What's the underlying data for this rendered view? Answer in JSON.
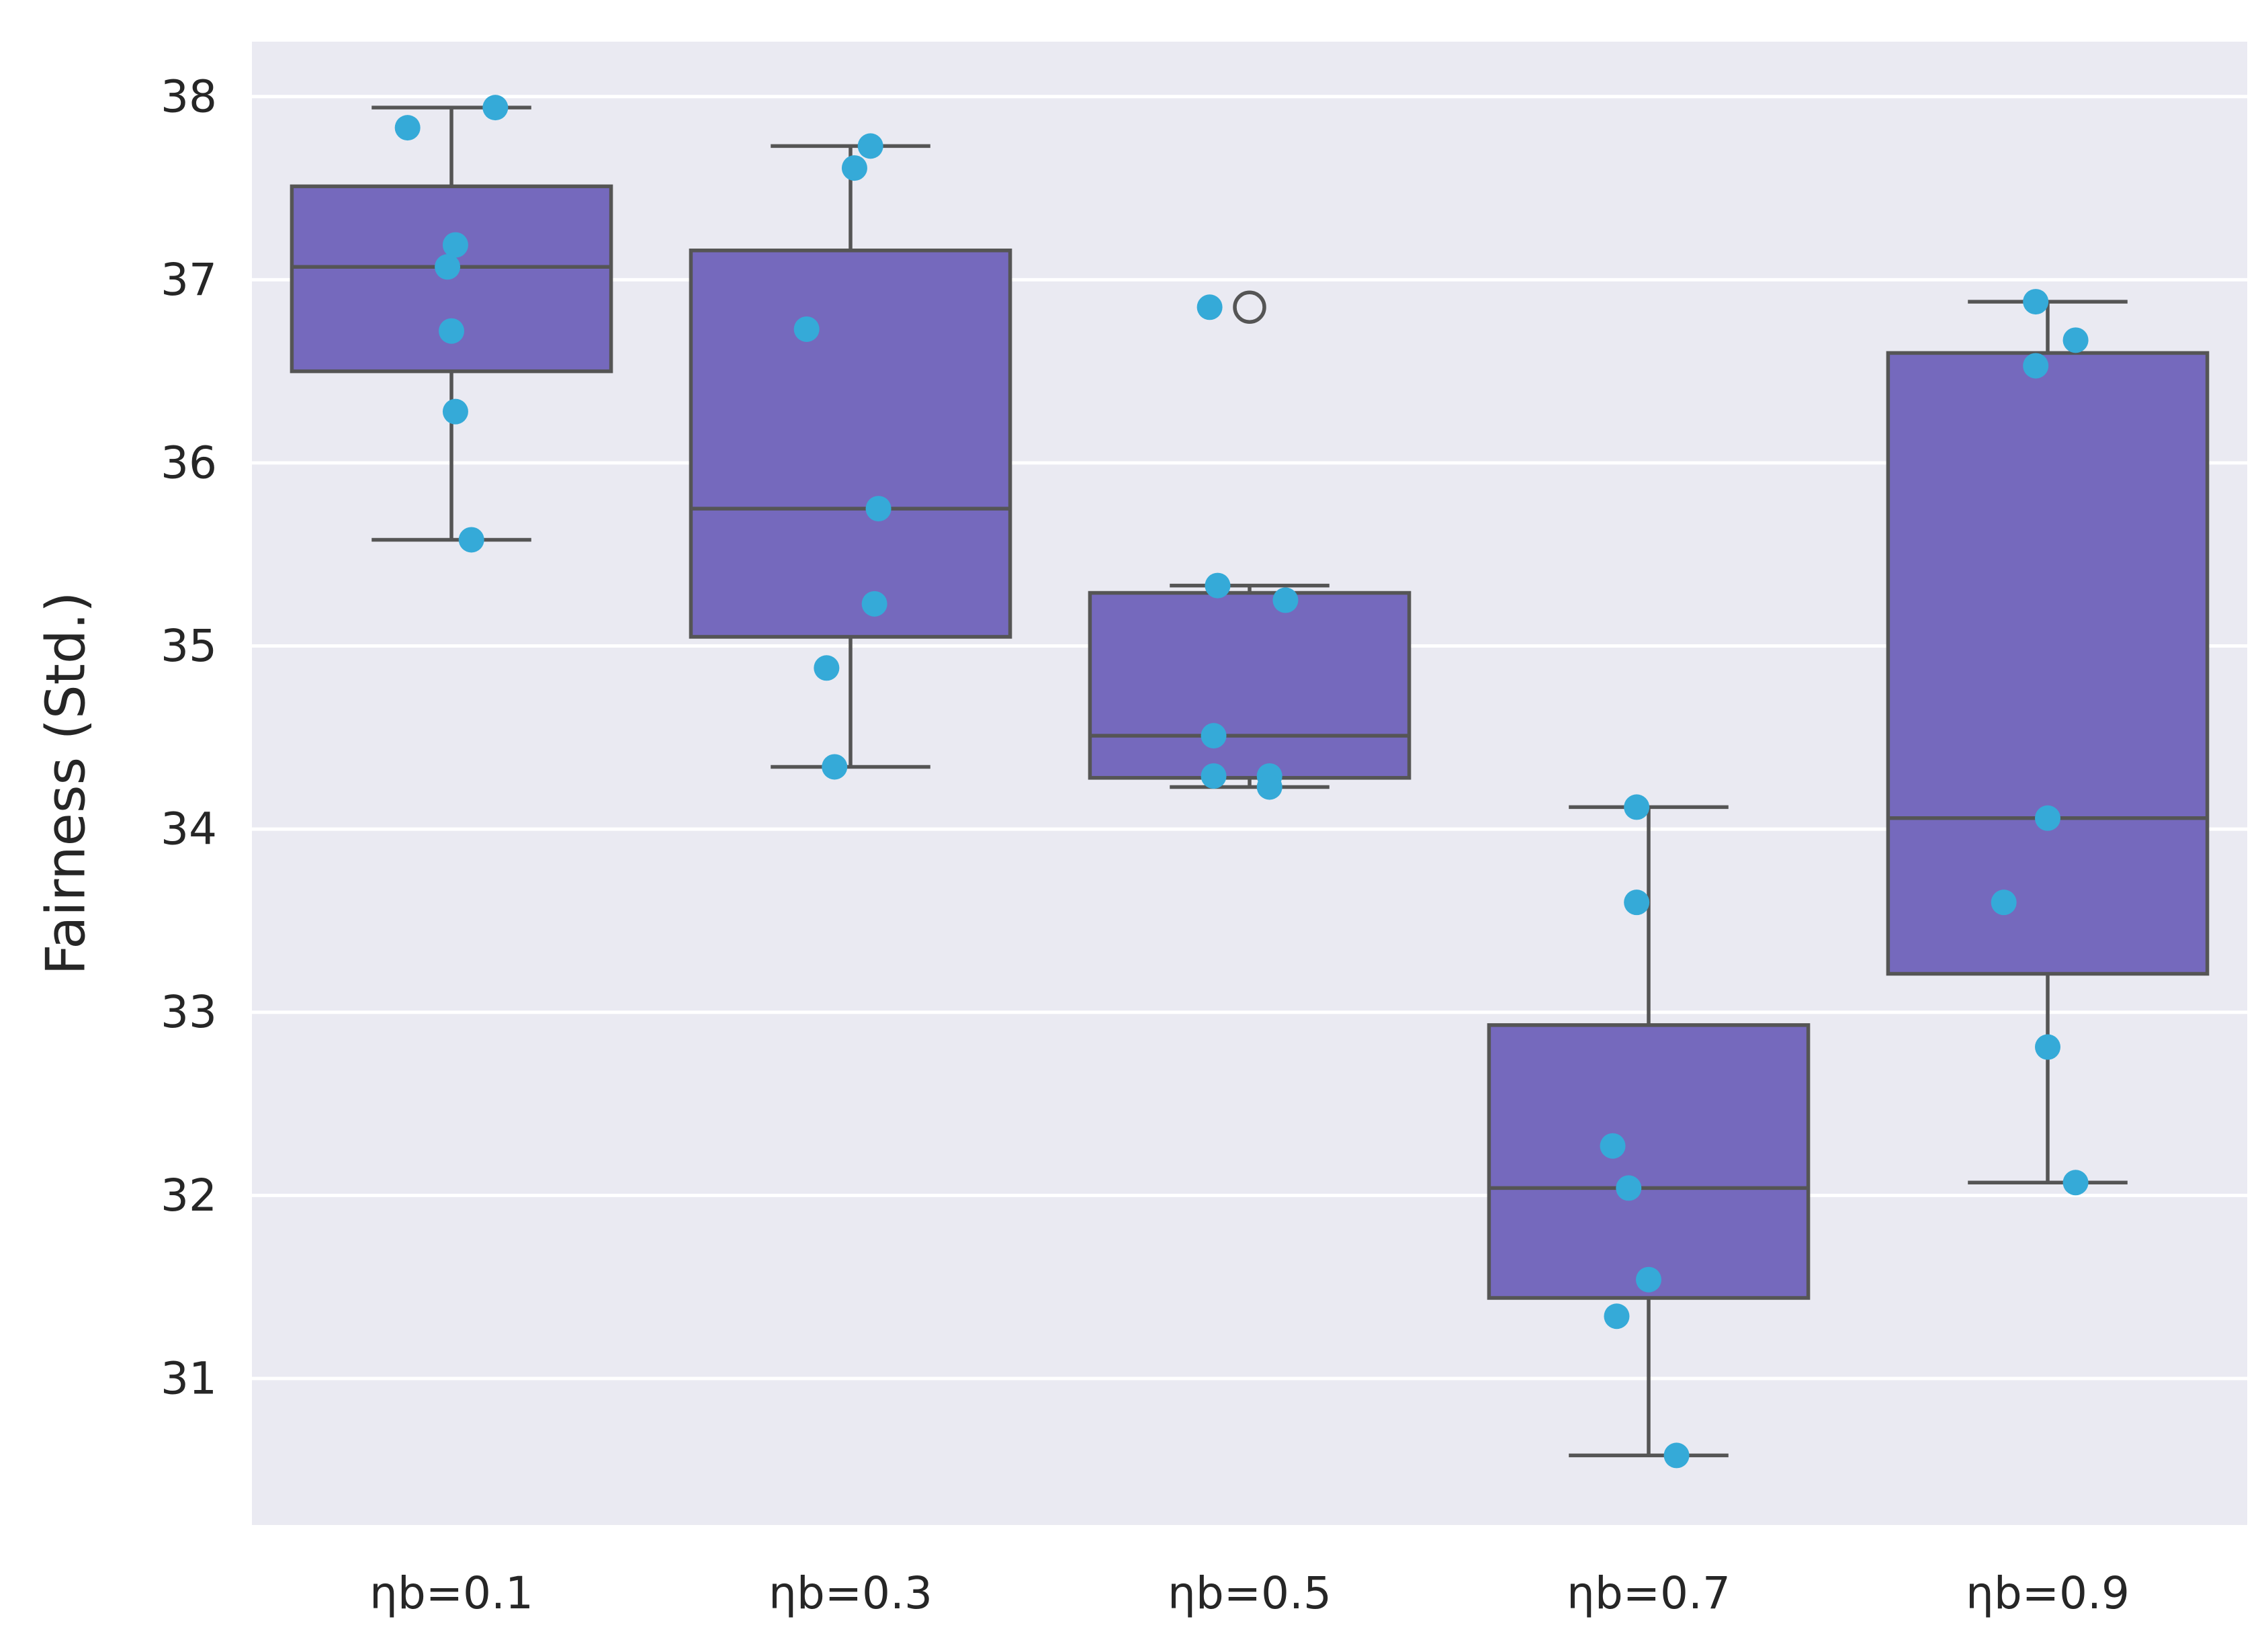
{
  "chart_data": {
    "type": "box",
    "title": "",
    "xlabel": "",
    "ylabel": "Fairness (Std.)",
    "ylim": [
      30.2,
      38.3
    ],
    "yticks": [
      31,
      32,
      33,
      34,
      35,
      36,
      37,
      38
    ],
    "grid": true,
    "categories": [
      "ηb=0.1",
      "ηb=0.3",
      "ηb=0.5",
      "ηb=0.7",
      "ηb=0.9"
    ],
    "boxes": [
      {
        "category": "ηb=0.1",
        "whisker_low": 35.58,
        "q1": 36.5,
        "median": 37.07,
        "q3": 37.51,
        "whisker_high": 37.94,
        "outliers": []
      },
      {
        "category": "ηb=0.3",
        "whisker_low": 34.34,
        "q1": 35.05,
        "median": 35.75,
        "q3": 37.16,
        "whisker_high": 37.73,
        "outliers": []
      },
      {
        "category": "ηb=0.5",
        "whisker_low": 34.23,
        "q1": 34.28,
        "median": 34.51,
        "q3": 35.29,
        "whisker_high": 35.33,
        "outliers": [
          36.85
        ]
      },
      {
        "category": "ηb=0.7",
        "whisker_low": 30.58,
        "q1": 31.44,
        "median": 32.04,
        "q3": 32.93,
        "whisker_high": 34.12,
        "outliers": []
      },
      {
        "category": "ηb=0.9",
        "whisker_low": 32.07,
        "q1": 33.21,
        "median": 34.06,
        "q3": 36.6,
        "whisker_high": 36.88,
        "outliers": []
      }
    ],
    "points": [
      {
        "category": "ηb=0.1",
        "values": [
          37.83,
          37.94,
          37.19,
          37.07,
          36.72,
          36.28,
          35.58
        ],
        "jitter": [
          -0.11,
          0.11,
          0.01,
          -0.01,
          0.0,
          0.01,
          0.05
        ]
      },
      {
        "category": "ηb=0.3",
        "values": [
          37.73,
          37.61,
          36.73,
          35.75,
          35.23,
          34.88,
          34.34
        ],
        "jitter": [
          0.05,
          0.01,
          -0.11,
          0.07,
          0.06,
          -0.06,
          -0.04
        ]
      },
      {
        "category": "ηb=0.5",
        "values": [
          36.85,
          35.33,
          35.25,
          34.51,
          34.29,
          34.29,
          34.23
        ],
        "jitter": [
          -0.1,
          -0.08,
          0.09,
          -0.09,
          -0.09,
          0.05,
          0.05
        ]
      },
      {
        "category": "ηb=0.7",
        "values": [
          34.12,
          33.6,
          32.27,
          32.04,
          31.54,
          31.34,
          30.58
        ],
        "jitter": [
          -0.03,
          -0.03,
          -0.09,
          -0.05,
          0.0,
          -0.08,
          0.07
        ]
      },
      {
        "category": "ηb=0.9",
        "values": [
          36.88,
          36.67,
          36.53,
          34.06,
          33.6,
          32.81,
          32.07
        ],
        "jitter": [
          -0.03,
          0.07,
          -0.03,
          0.0,
          -0.11,
          0.0,
          0.07
        ]
      }
    ],
    "colors": {
      "background": "#eaeaf2",
      "grid": "#ffffff",
      "box_fill": "#7569bd",
      "box_line": "#555555",
      "points": "#35aad8",
      "text": "#262626"
    }
  }
}
